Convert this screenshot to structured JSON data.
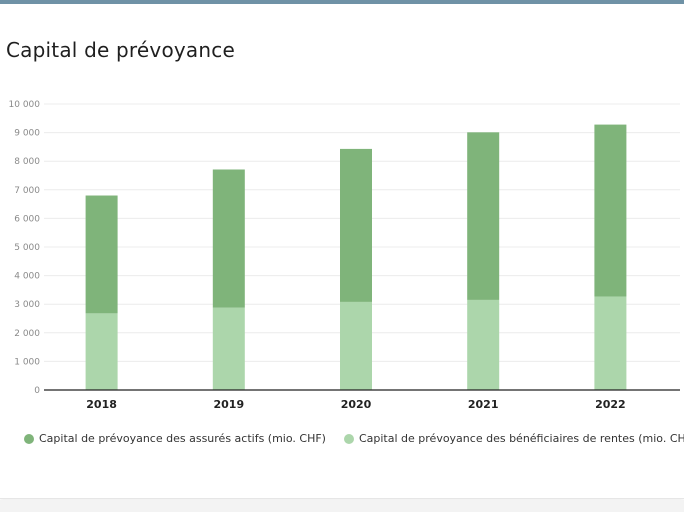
{
  "title": "Capital de prévoyance",
  "colors": {
    "active": "#7fb47a",
    "pensioners": "#acd6ab",
    "grid": "#ececec",
    "axis": "#222222",
    "tick_text": "#8a8a8a",
    "category_text": "#222222"
  },
  "legend": [
    {
      "label": "Capital de prévoyance des assurés actifs (mio. CHF)",
      "color": "#7fb47a"
    },
    {
      "label": "Capital de prévoyance des bénéficiaires de rentes (mio. CHF)",
      "color": "#acd6ab"
    }
  ],
  "chart_data": {
    "type": "bar",
    "stacked": true,
    "title": "Capital de prévoyance",
    "xlabel": "",
    "ylabel": "",
    "categories": [
      "2018",
      "2019",
      "2020",
      "2021",
      "2022"
    ],
    "series": [
      {
        "name": "Capital de prévoyance des bénéficiaires de rentes (mio. CHF)",
        "values": [
          2680,
          2880,
          3080,
          3150,
          3270
        ]
      },
      {
        "name": "Capital de prévoyance des assurés actifs (mio. CHF)",
        "values": [
          4120,
          4830,
          5350,
          5860,
          6010
        ]
      }
    ],
    "ylim": [
      0,
      10000
    ],
    "yticks": [
      "0",
      "1 000",
      "2 000",
      "3 000",
      "4 000",
      "5 000",
      "6 000",
      "7 000",
      "8 000",
      "9 000",
      "10 000"
    ],
    "grid": true,
    "legend_position": "bottom"
  }
}
